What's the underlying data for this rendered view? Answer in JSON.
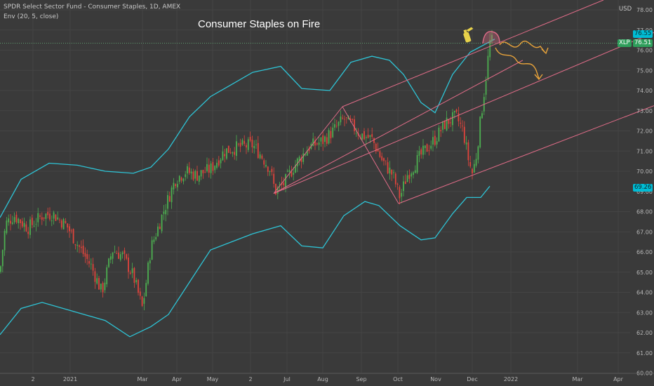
{
  "header": {
    "symbol_line": "SPDR Select Sector Fund - Consumer Staples, 1D, AMEX",
    "indicator_line": "Env (20, 5, close)"
  },
  "annotation": {
    "title": "Consumer Staples on Fire"
  },
  "axis": {
    "currency": "USD",
    "price_ticks": [
      "78.00",
      "77.00",
      "76.00",
      "75.00",
      "74.00",
      "73.00",
      "72.00",
      "71.00",
      "70.00",
      "69.00",
      "68.00",
      "67.00",
      "66.00",
      "65.00",
      "64.00",
      "63.00",
      "62.00",
      "61.00",
      "60.00"
    ],
    "time_labels": [
      {
        "label": "2"
      },
      {
        "label": "2021"
      },
      {
        "label": "Mar"
      },
      {
        "label": "Apr"
      },
      {
        "label": "May"
      },
      {
        "label": "2"
      },
      {
        "label": "Jul"
      },
      {
        "label": "Aug"
      },
      {
        "label": "Sep"
      },
      {
        "label": "Oct"
      },
      {
        "label": "Nov"
      },
      {
        "label": "Dec"
      },
      {
        "label": "2022"
      },
      {
        "label": "Mar"
      },
      {
        "label": "Apr"
      }
    ]
  },
  "price_labels": {
    "upper_env": "76.55",
    "symbol": "XLP",
    "last_price": "76.51",
    "lower_env": "69.26"
  },
  "colors": {
    "background": "#3a3a3a",
    "up_candle": "#4caf50",
    "down_candle": "#e0443c",
    "envelope": "#2ec4d6",
    "channel": "#e06c88",
    "forecast_arrow": "#e8a33a",
    "symbol_tag": "#2e9e5b",
    "env_tag": "#00bcd4"
  },
  "chart_data": {
    "type": "candlestick",
    "symbol": "XLP",
    "ylim": [
      60,
      78
    ],
    "price_series": [
      [
        0,
        65.0
      ],
      [
        8,
        67.4
      ],
      [
        20,
        67.8
      ],
      [
        40,
        67.2
      ],
      [
        60,
        67.8
      ],
      [
        75,
        67.9
      ],
      [
        95,
        67.3
      ],
      [
        110,
        66.4
      ],
      [
        130,
        65.3
      ],
      [
        145,
        64.0
      ],
      [
        160,
        66.1
      ],
      [
        175,
        65.8
      ],
      [
        190,
        64.8
      ],
      [
        203,
        63.2
      ],
      [
        215,
        66.2
      ],
      [
        235,
        68.2
      ],
      [
        250,
        69.6
      ],
      [
        265,
        70.0
      ],
      [
        280,
        69.8
      ],
      [
        300,
        70.1
      ],
      [
        320,
        71.0
      ],
      [
        340,
        71.2
      ],
      [
        360,
        71.3
      ],
      [
        372,
        70.8
      ],
      [
        385,
        70.1
      ],
      [
        392,
        69.0
      ],
      [
        405,
        69.4
      ],
      [
        420,
        70.3
      ],
      [
        440,
        71.2
      ],
      [
        460,
        71.5
      ],
      [
        475,
        72.0
      ],
      [
        490,
        72.6
      ],
      [
        500,
        72.3
      ],
      [
        515,
        71.8
      ],
      [
        530,
        71.6
      ],
      [
        545,
        70.5
      ],
      [
        560,
        69.8
      ],
      [
        570,
        68.7
      ],
      [
        580,
        69.8
      ],
      [
        600,
        70.8
      ],
      [
        620,
        71.6
      ],
      [
        635,
        72.4
      ],
      [
        650,
        72.7
      ],
      [
        660,
        72.0
      ],
      [
        668,
        70.5
      ],
      [
        673,
        69.9
      ],
      [
        678,
        70.6
      ],
      [
        685,
        72.6
      ],
      [
        692,
        74.5
      ],
      [
        698,
        76.4
      ],
      [
        705,
        76.5
      ]
    ],
    "envelope_upper": [
      [
        0,
        67.7
      ],
      [
        30,
        69.6
      ],
      [
        70,
        70.4
      ],
      [
        110,
        70.3
      ],
      [
        150,
        70.0
      ],
      [
        190,
        69.9
      ],
      [
        215,
        70.2
      ],
      [
        240,
        71.1
      ],
      [
        270,
        72.7
      ],
      [
        300,
        73.7
      ],
      [
        330,
        74.3
      ],
      [
        360,
        74.9
      ],
      [
        400,
        75.2
      ],
      [
        430,
        74.1
      ],
      [
        470,
        74.0
      ],
      [
        500,
        75.4
      ],
      [
        530,
        75.7
      ],
      [
        555,
        75.5
      ],
      [
        575,
        74.8
      ],
      [
        600,
        73.4
      ],
      [
        620,
        72.9
      ],
      [
        645,
        74.8
      ],
      [
        670,
        75.9
      ],
      [
        705,
        76.55
      ]
    ],
    "envelope_lower": [
      [
        0,
        61.9
      ],
      [
        30,
        63.2
      ],
      [
        60,
        63.5
      ],
      [
        90,
        63.2
      ],
      [
        120,
        62.9
      ],
      [
        150,
        62.6
      ],
      [
        185,
        61.8
      ],
      [
        215,
        62.3
      ],
      [
        240,
        62.9
      ],
      [
        270,
        64.5
      ],
      [
        300,
        66.1
      ],
      [
        330,
        66.5
      ],
      [
        360,
        66.9
      ],
      [
        400,
        67.3
      ],
      [
        430,
        66.3
      ],
      [
        460,
        66.2
      ],
      [
        490,
        67.8
      ],
      [
        520,
        68.5
      ],
      [
        540,
        68.3
      ],
      [
        570,
        67.3
      ],
      [
        600,
        66.6
      ],
      [
        620,
        66.7
      ],
      [
        645,
        67.9
      ],
      [
        665,
        68.7
      ],
      [
        685,
        68.7
      ],
      [
        698,
        69.26
      ]
    ],
    "channel": {
      "pivot_high": {
        "x": "2021-08-16",
        "y": 73.2
      },
      "pivot_low": {
        "x": "2021-10-04",
        "y": 68.4
      },
      "base_start": {
        "x": "2021-06-18",
        "y": 68.9
      },
      "base_end": {
        "x": "2021-12-20",
        "y": 76.4
      }
    },
    "last_price": 76.51,
    "envelope_upper_last": 76.55,
    "envelope_lower_last": 69.26
  }
}
